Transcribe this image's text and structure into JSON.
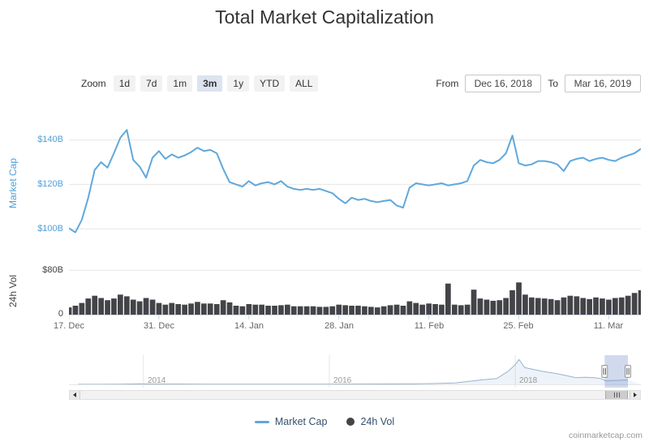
{
  "title": "Total Market Capitalization",
  "range_selector": {
    "zoom_label": "Zoom",
    "buttons": [
      {
        "label": "1d",
        "selected": false
      },
      {
        "label": "7d",
        "selected": false
      },
      {
        "label": "1m",
        "selected": false
      },
      {
        "label": "3m",
        "selected": true
      },
      {
        "label": "1y",
        "selected": false
      },
      {
        "label": "YTD",
        "selected": false
      },
      {
        "label": "ALL",
        "selected": false
      }
    ],
    "from_label": "From",
    "from_value": "Dec 16, 2018",
    "to_label": "To",
    "to_value": "Mar 16, 2019"
  },
  "legend": {
    "items": [
      {
        "label": "Market Cap",
        "color": "#5FA8DC",
        "symbol": "line"
      },
      {
        "label": "24h Vol",
        "color": "#434348",
        "symbol": "circle"
      }
    ]
  },
  "credits": "coinmarketcap.com",
  "navigator": {
    "labels": [
      "2014",
      "2016",
      "2018"
    ],
    "grid_years": [
      2014,
      2016,
      2018
    ],
    "x_range": [
      2013.2,
      2019.35
    ],
    "sel_range": [
      2018.96,
      2019.21
    ],
    "ymax": 830,
    "series": [
      [
        2013.3,
        2
      ],
      [
        2013.75,
        6
      ],
      [
        2013.95,
        15
      ],
      [
        2014.1,
        12
      ],
      [
        2014.4,
        9
      ],
      [
        2014.8,
        6
      ],
      [
        2015.1,
        4.5
      ],
      [
        2015.5,
        4.5
      ],
      [
        2015.9,
        6
      ],
      [
        2016.3,
        9
      ],
      [
        2016.6,
        13
      ],
      [
        2016.9,
        15
      ],
      [
        2017.1,
        25
      ],
      [
        2017.35,
        45
      ],
      [
        2017.5,
        95
      ],
      [
        2017.65,
        140
      ],
      [
        2017.8,
        180
      ],
      [
        2017.92,
        400
      ],
      [
        2018.0,
        610
      ],
      [
        2018.04,
        770
      ],
      [
        2018.1,
        520
      ],
      [
        2018.2,
        460
      ],
      [
        2018.3,
        400
      ],
      [
        2018.45,
        330
      ],
      [
        2018.55,
        270
      ],
      [
        2018.65,
        210
      ],
      [
        2018.75,
        220
      ],
      [
        2018.85,
        210
      ],
      [
        2018.92,
        180
      ],
      [
        2018.97,
        110
      ],
      [
        2019.05,
        120
      ],
      [
        2019.15,
        130
      ],
      [
        2019.21,
        135
      ]
    ]
  },
  "chart_data": [
    {
      "type": "line",
      "name": "Market Cap",
      "ylabel": "Market Cap",
      "color": "#5FA8DC",
      "unit": "USD billions",
      "x_start": "2018-12-17",
      "x_end": "2019-03-16",
      "x_unit": "day",
      "x_tick_labels": [
        "17. Dec",
        "31. Dec",
        "14. Jan",
        "28. Jan",
        "11. Feb",
        "25. Feb",
        "11. Mar"
      ],
      "x_tick_days": [
        0,
        14,
        28,
        42,
        56,
        70,
        84
      ],
      "ytick_values": [
        100,
        120,
        140
      ],
      "ytick_labels": [
        "$100B",
        "$120B",
        "$140B"
      ],
      "ylim": [
        93.5,
        147.5
      ],
      "values": [
        100.3,
        98.4,
        104.0,
        114.0,
        126.5,
        130.0,
        127.5,
        134.0,
        141.0,
        144.5,
        131.0,
        128.0,
        123.0,
        132.0,
        135.0,
        131.5,
        133.5,
        132.0,
        133.0,
        134.5,
        136.5,
        135.0,
        135.5,
        134.0,
        127.0,
        121.0,
        120.0,
        119.0,
        121.5,
        119.5,
        120.5,
        121.0,
        120.0,
        121.5,
        119.0,
        118.0,
        117.5,
        118.0,
        117.5,
        118.0,
        117.0,
        116.0,
        113.5,
        111.5,
        114.0,
        113.0,
        113.5,
        112.5,
        112.0,
        112.5,
        113.0,
        110.5,
        109.5,
        118.5,
        120.5,
        120.0,
        119.5,
        120.0,
        120.5,
        119.5,
        120.0,
        120.5,
        121.5,
        128.5,
        131.0,
        130.0,
        129.5,
        131.0,
        134.0,
        142.0,
        129.5,
        128.5,
        129.0,
        130.5,
        130.5,
        130.0,
        129.0,
        126.0,
        130.5,
        131.5,
        132.0,
        130.5,
        131.5,
        132.0,
        131.0,
        130.5,
        132.0,
        133.0,
        134.0,
        136.0
      ]
    },
    {
      "type": "column",
      "name": "24h Vol",
      "ylabel": "24h Vol",
      "color": "#434348",
      "unit": "USD billions",
      "ytick_values": [
        0,
        80
      ],
      "ytick_labels": [
        "0",
        "$80B"
      ],
      "ylim": [
        0,
        84.7
      ],
      "values": [
        13,
        16,
        21,
        29,
        34,
        30,
        26,
        29,
        36,
        33,
        27,
        24,
        30,
        27,
        21,
        18,
        21,
        19,
        18,
        20,
        23,
        20,
        20,
        19,
        26,
        22,
        16,
        15,
        19,
        18,
        18,
        16,
        16,
        17,
        18,
        15,
        15,
        15,
        15,
        14,
        14,
        15,
        18,
        17,
        16,
        16,
        15,
        14,
        13,
        15,
        17,
        18,
        16,
        24,
        21,
        18,
        20,
        19,
        18,
        56,
        18,
        17,
        18,
        45,
        29,
        27,
        25,
        26,
        30,
        44,
        58,
        36,
        31,
        30,
        29,
        28,
        26,
        31,
        34,
        33,
        30,
        28,
        31,
        29,
        27,
        30,
        31,
        34,
        39,
        44
      ]
    }
  ]
}
